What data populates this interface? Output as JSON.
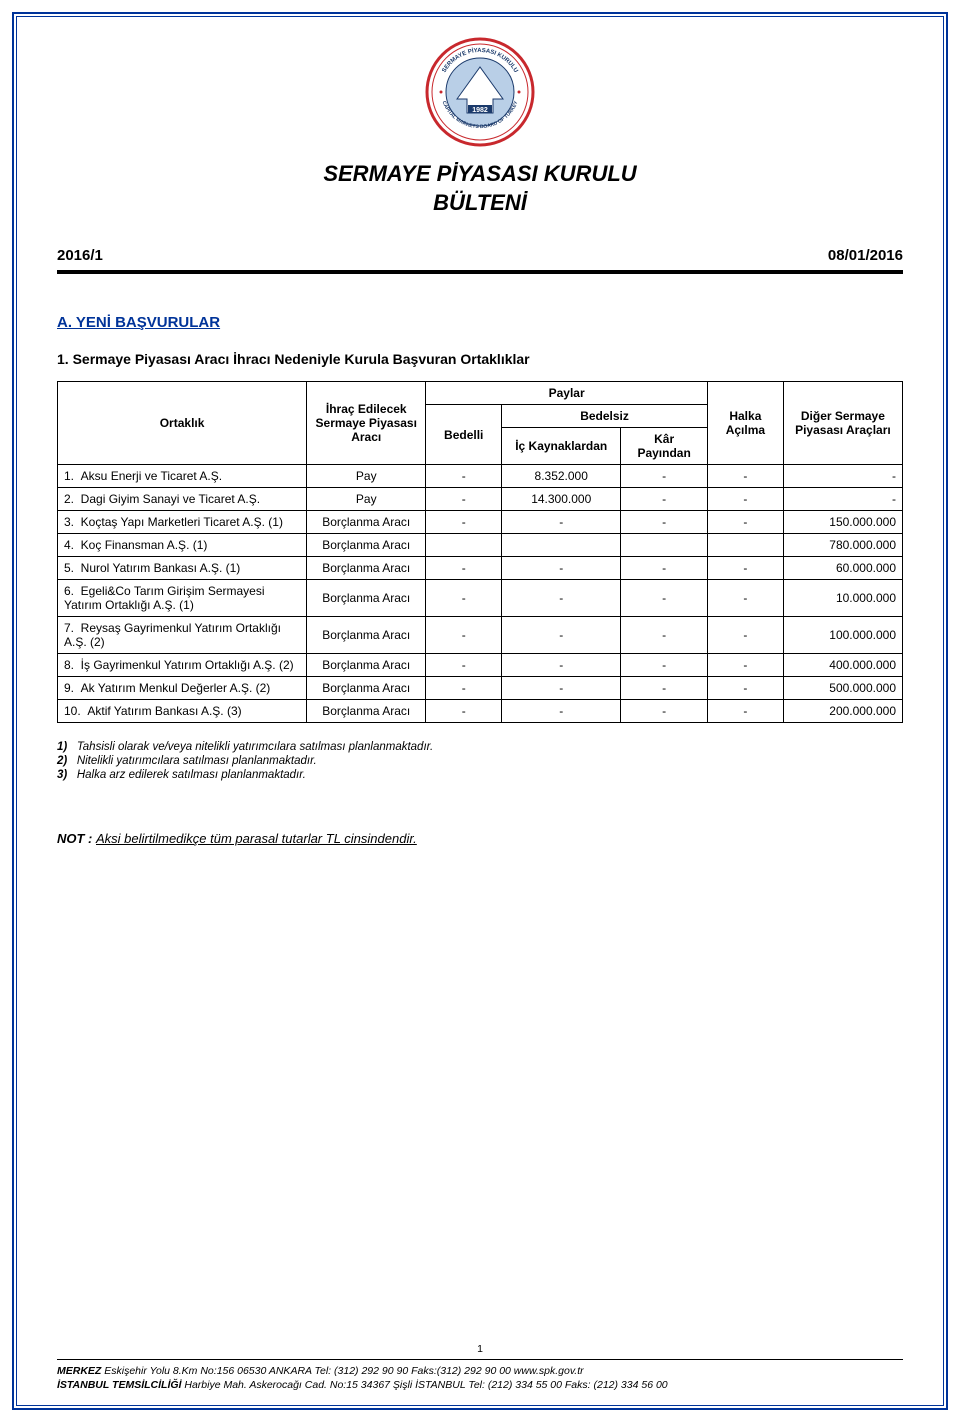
{
  "doc": {
    "title_line1": "SERMAYE PİYASASI KURULU",
    "title_line2": "BÜLTENİ",
    "issue": "2016/1",
    "date": "08/01/2016"
  },
  "logo": {
    "outer_ring_color": "#c8282d",
    "inner_fill_color": "#b9cfe7",
    "text_color": "#1b3a6b",
    "ring_text_top": "SERMAYE PİYASASI KURULU",
    "ring_text_bottom": "CAPITAL MARKETS BOARD OF TURKEY",
    "year": "1982"
  },
  "section_a": {
    "heading": "A.   YENİ BAŞVURULAR",
    "sub1": "1.   Sermaye Piyasası Aracı İhracı Nedeniyle Kurula Başvuran Ortaklıklar"
  },
  "table": {
    "headers": {
      "ortaklik": "Ortaklık",
      "ihrac": "İhraç Edilecek Sermaye Piyasası Aracı",
      "bedelli": "Bedelli",
      "paylar": "Paylar",
      "bedelsiz": "Bedelsiz",
      "ic": "İç Kaynaklardan",
      "kar": "Kâr Payından",
      "halka": "Halka Açılma",
      "diger": "Diğer Sermaye Piyasası Araçları"
    },
    "rows": [
      {
        "no": "1.",
        "name": "Aksu Enerji ve Ticaret A.Ş.",
        "arac": "Pay",
        "bedelli": "-",
        "ic": "8.352.000",
        "kar": "-",
        "halka": "-",
        "diger": "-"
      },
      {
        "no": "2.",
        "name": "Dagi Giyim Sanayi ve Ticaret A.Ş.",
        "arac": "Pay",
        "bedelli": "-",
        "ic": "14.300.000",
        "kar": "-",
        "halka": "-",
        "diger": "-"
      },
      {
        "no": "3.",
        "name": "Koçtaş Yapı Marketleri Ticaret A.Ş. (1)",
        "arac": "Borçlanma Aracı",
        "bedelli": "-",
        "ic": "-",
        "kar": "-",
        "halka": "-",
        "diger": "150.000.000"
      },
      {
        "no": "4.",
        "name": "Koç Finansman A.Ş. (1)",
        "arac": "Borçlanma Aracı",
        "bedelli": "",
        "ic": "",
        "kar": "",
        "halka": "",
        "diger": "780.000.000"
      },
      {
        "no": "5.",
        "name": "Nurol Yatırım Bankası A.Ş. (1)",
        "arac": "Borçlanma Aracı",
        "bedelli": "-",
        "ic": "-",
        "kar": "-",
        "halka": "-",
        "diger": "60.000.000"
      },
      {
        "no": "6.",
        "name": "Egeli&Co Tarım Girişim Sermayesi Yatırım Ortaklığı A.Ş. (1)",
        "arac": "Borçlanma Aracı",
        "bedelli": "-",
        "ic": "-",
        "kar": "-",
        "halka": "-",
        "diger": "10.000.000"
      },
      {
        "no": "7.",
        "name": "Reysaş Gayrimenkul Yatırım Ortaklığı A.Ş. (2)",
        "arac": "Borçlanma Aracı",
        "bedelli": "-",
        "ic": "-",
        "kar": "-",
        "halka": "-",
        "diger": "100.000.000"
      },
      {
        "no": "8.",
        "name": "İş Gayrimenkul Yatırım Ortaklığı A.Ş. (2)",
        "arac": "Borçlanma Aracı",
        "bedelli": "-",
        "ic": "-",
        "kar": "-",
        "halka": "-",
        "diger": "400.000.000"
      },
      {
        "no": "9.",
        "name": "Ak Yatırım Menkul Değerler A.Ş. (2)",
        "arac": "Borçlanma Aracı",
        "bedelli": "-",
        "ic": "-",
        "kar": "-",
        "halka": "-",
        "diger": "500.000.000"
      },
      {
        "no": "10.",
        "name": "Aktif Yatırım Bankası A.Ş. (3)",
        "arac": "Borçlanma Aracı",
        "bedelli": "-",
        "ic": "-",
        "kar": "-",
        "halka": "-",
        "diger": "200.000.000"
      }
    ]
  },
  "footnotes": [
    {
      "n": "1)",
      "t": "Tahsisli olarak ve/veya nitelikli yatırımcılara satılması planlanmaktadır."
    },
    {
      "n": "2)",
      "t": "Nitelikli yatırımcılara satılması planlanmaktadır."
    },
    {
      "n": "3)",
      "t": "Halka arz edilerek satılması planlanmaktadır."
    }
  ],
  "note": {
    "label": "NOT : ",
    "text": "Aksi belirtilmedikçe tüm parasal tutarlar TL cinsindendir."
  },
  "footer": {
    "page": "1",
    "line1_b": "MERKEZ ",
    "line1_i": "Eskişehir Yolu 8.Km No:156 06530 ANKARA Tel: (312) 292 90 90 Faks:(312) 292 90 00 www.spk.gov.tr",
    "line2_b": "İSTANBUL TEMSİLCİLİĞİ ",
    "line2_i": "Harbiye Mah. Askerocağı Cad. No:15 34367 Şişli İSTANBUL Tel: (212) 334 55 00 Faks: (212) 334 56 00"
  }
}
